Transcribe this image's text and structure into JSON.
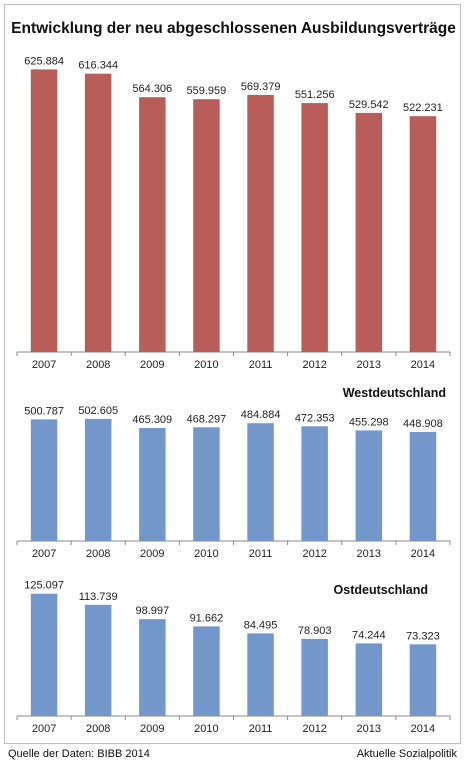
{
  "title": "Entwicklung der neu abgeschlossenen Ausbildungsverträge",
  "footer": {
    "source": "Quelle der Daten: BIBB 2014",
    "publisher": "Aktuelle Sozialpolitik"
  },
  "chart_data": [
    {
      "type": "bar",
      "title": "",
      "categories": [
        "2007",
        "2008",
        "2009",
        "2010",
        "2011",
        "2012",
        "2013",
        "2014"
      ],
      "values": [
        625884,
        616344,
        564306,
        559959,
        569379,
        551256,
        529542,
        522231
      ],
      "value_labels": [
        "625.884",
        "616.344",
        "564.306",
        "559.959",
        "569.379",
        "551.256",
        "529.542",
        "522.231"
      ],
      "color": "#b95d5a",
      "ylim": [
        0,
        680000
      ],
      "grid": false
    },
    {
      "type": "bar",
      "title": "Westdeutschland",
      "categories": [
        "2007",
        "2008",
        "2009",
        "2010",
        "2011",
        "2012",
        "2013",
        "2014"
      ],
      "values": [
        500787,
        502605,
        465309,
        468297,
        484884,
        472353,
        455298,
        448908
      ],
      "value_labels": [
        "500.787",
        "502.605",
        "465.309",
        "468.297",
        "484.884",
        "472.353",
        "455.298",
        "448.908"
      ],
      "color": "#7396cb",
      "ylim": [
        0,
        560000
      ],
      "grid": false
    },
    {
      "type": "bar",
      "title": "Ostdeutschland",
      "categories": [
        "2007",
        "2008",
        "2009",
        "2010",
        "2011",
        "2012",
        "2013",
        "2014"
      ],
      "values": [
        125097,
        113739,
        98997,
        91662,
        84495,
        78903,
        74244,
        73323
      ],
      "value_labels": [
        "125.097",
        "113.739",
        "98.997",
        "91.662",
        "84.495",
        "78.903",
        "74.244",
        "73.323"
      ],
      "color": "#7396cb",
      "ylim": [
        0,
        133000
      ],
      "grid": false
    }
  ]
}
